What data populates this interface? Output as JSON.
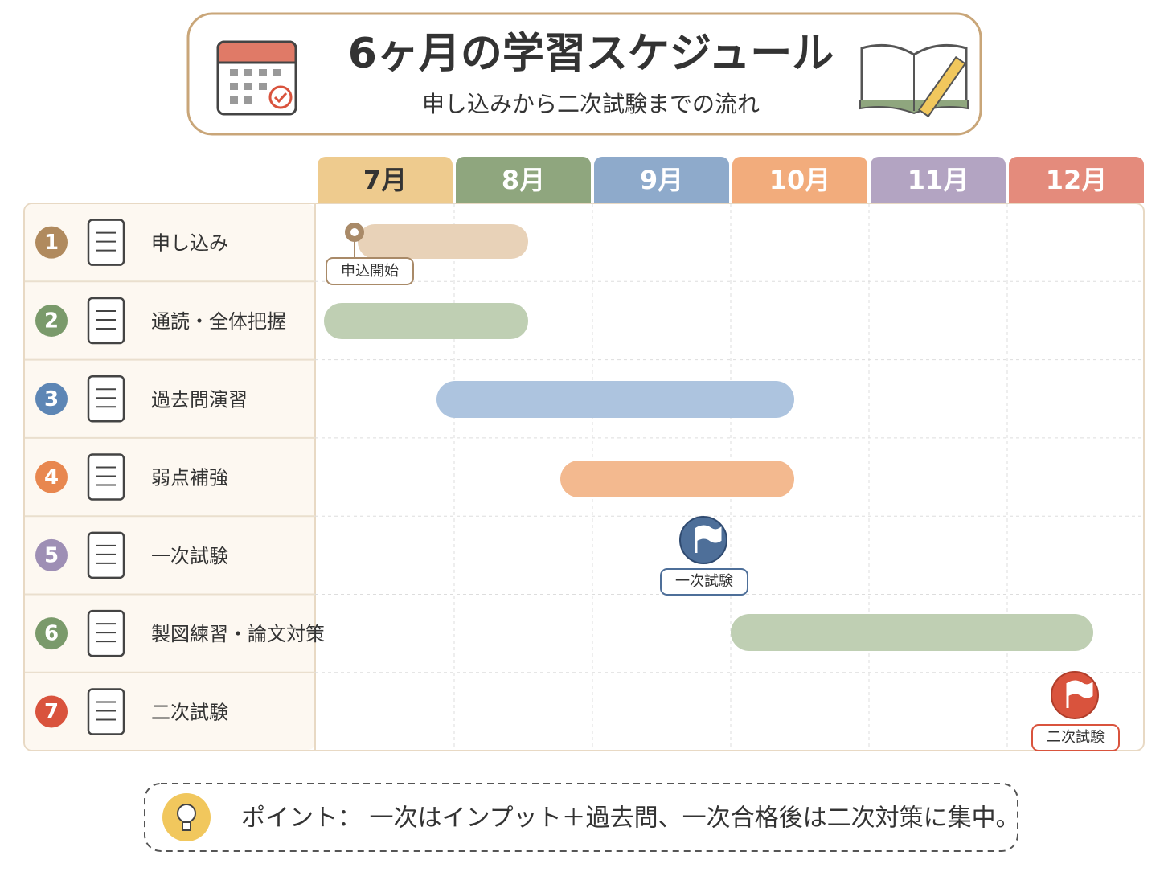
{
  "header": {
    "title": "6ヶ月の学習スケジュール",
    "subtitle": "申し込みから二次試験までの流れ"
  },
  "months": [
    "7月",
    "8月",
    "9月",
    "10月",
    "11月",
    "12月"
  ],
  "tasks": [
    {
      "number": "1",
      "label": "申し込み"
    },
    {
      "number": "2",
      "label": "通読・全体把握"
    },
    {
      "number": "3",
      "label": "過去問演習"
    },
    {
      "number": "4",
      "label": "弱点補強"
    },
    {
      "number": "5",
      "label": "一次試験"
    },
    {
      "number": "6",
      "label": "製図練習・論文対策"
    },
    {
      "number": "7",
      "label": "二次試験"
    }
  ],
  "milestones": [
    "申込開始",
    "一次試験",
    "二次試験"
  ],
  "note": {
    "text": "ポイント： 一次はインプット＋過去問、一次合格後は二次対策に集中。"
  }
}
